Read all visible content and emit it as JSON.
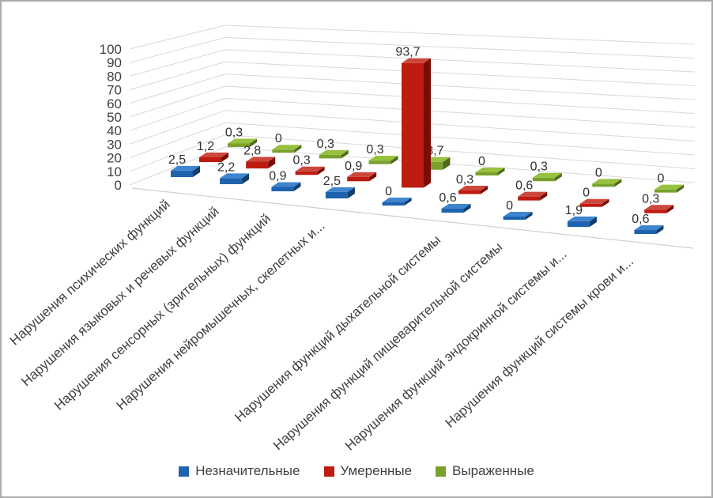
{
  "chart_data": {
    "type": "bar",
    "projection": "3d",
    "title": "",
    "categories": [
      "Нарушения психических функций",
      "Нарушения языковых и речевых функций",
      "Нарушения сенсорных (зрительных) функций",
      "Нарушения нейромышечных, скелетных и...",
      "",
      "Нарушения функций дыхательной системы",
      "Нарушения функций пищеварительной системы",
      "Нарушения функций эндокринной системы и...",
      "Нарушения функций системы крови и..."
    ],
    "series": [
      {
        "name": "Незначительные",
        "colors": {
          "front": "#1F63AE",
          "top": "#3E85CE",
          "side": "#123E6F"
        },
        "values": [
          2.5,
          2.2,
          0.9,
          2.5,
          0,
          0.6,
          0,
          1.9,
          0.6
        ]
      },
      {
        "name": "Умеренные",
        "colors": {
          "front": "#BE1B11",
          "top": "#CD473B",
          "side": "#7A0C04"
        },
        "values": [
          1.2,
          2.8,
          0.3,
          0.9,
          93.7,
          0.3,
          0.6,
          0,
          0.3
        ]
      },
      {
        "name": "Выраженные",
        "colors": {
          "front": "#7AA12D",
          "top": "#97C13E",
          "side": "#4F6A1C"
        },
        "values": [
          0.3,
          0,
          0.3,
          0.3,
          3.7,
          0,
          0.3,
          0,
          0
        ]
      }
    ],
    "y_axis": {
      "min": 0,
      "max": 100,
      "step": 10,
      "tick_labels": [
        "0",
        "10",
        "20",
        "30",
        "40",
        "50",
        "60",
        "70",
        "80",
        "90",
        "100"
      ]
    },
    "decimal_separator": ",",
    "grid_color": "#D9D9D9",
    "axis_text_color": "#404040",
    "value_label_color": "#303030",
    "legend_position": "bottom"
  }
}
